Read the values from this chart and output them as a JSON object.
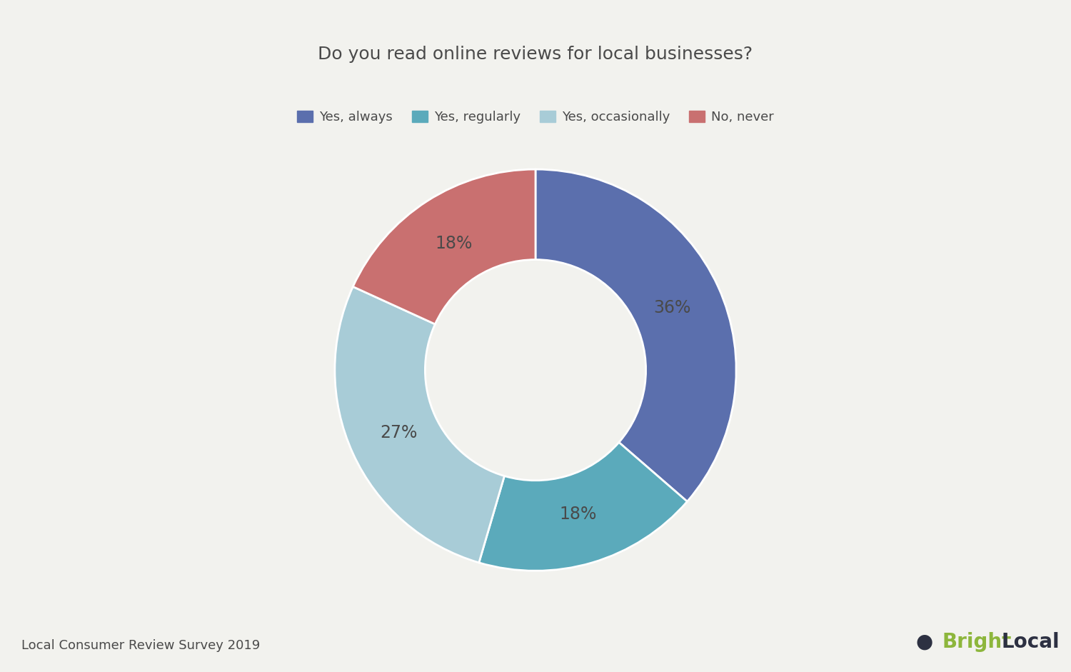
{
  "title": "Do you read online reviews for local businesses?",
  "title_fontsize": 18,
  "background_color": "#f2f2ee",
  "slices": [
    36,
    18,
    27,
    18
  ],
  "labels": [
    "Yes, always",
    "Yes, regularly",
    "Yes, occasionally",
    "No, never"
  ],
  "colors": [
    "#5b6fad",
    "#5baabb",
    "#a8ccd7",
    "#c97070"
  ],
  "pct_labels": [
    "36%",
    "18%",
    "27%",
    "18%"
  ],
  "legend_labels": [
    "Yes, always",
    "Yes, regularly",
    "Yes, occasionally",
    "No, never"
  ],
  "start_angle": 90,
  "watermark_left": "Local Consumer Review Survey 2019",
  "watermark_bright": "Bright",
  "watermark_local": "Local",
  "bright_color": "#8db63c",
  "local_color": "#2d3142"
}
